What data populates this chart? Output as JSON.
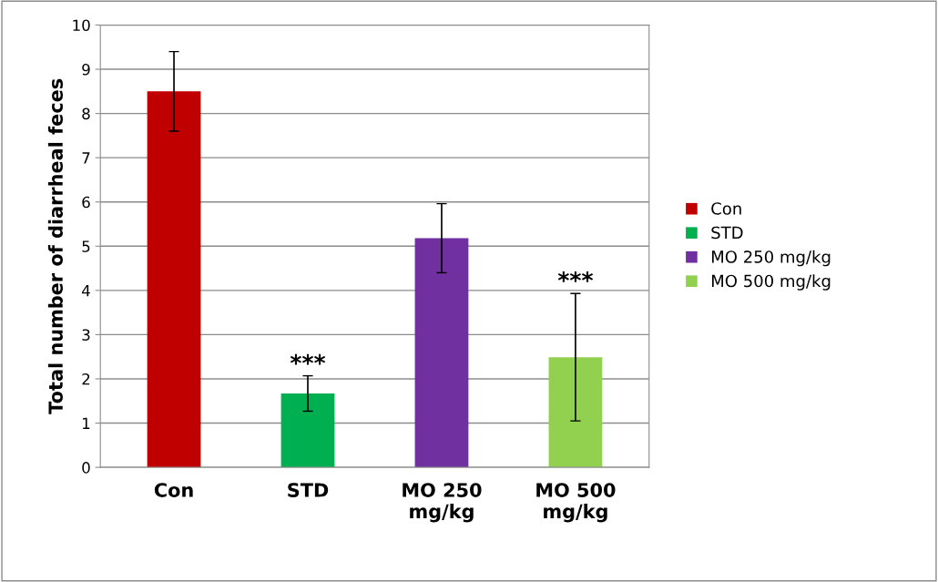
{
  "chart_data": {
    "type": "bar",
    "ylabel": "Total number of diarrheal feces",
    "categories": [
      "Con",
      "STD",
      "MO 250\nmg/kg",
      "MO 500\nmg/kg"
    ],
    "series": [
      {
        "name": "Con",
        "color": "#c00000",
        "values": [
          8.5,
          null,
          null,
          null
        ],
        "errors": [
          0.9,
          null,
          null,
          null
        ]
      },
      {
        "name": "STD",
        "color": "#00b050",
        "values": [
          null,
          1.67,
          null,
          null
        ],
        "errors": [
          null,
          0.4,
          null,
          null
        ]
      },
      {
        "name": "MO 250 mg/kg",
        "color": "#7030a0",
        "values": [
          null,
          null,
          5.18,
          null
        ],
        "errors": [
          null,
          null,
          0.78,
          null
        ]
      },
      {
        "name": "MO 500 mg/kg",
        "color": "#92d050",
        "values": [
          null,
          null,
          null,
          2.49
        ],
        "errors": [
          null,
          null,
          null,
          1.44
        ]
      }
    ],
    "ylim": [
      0,
      10
    ],
    "yticks": [
      0,
      1,
      2,
      3,
      4,
      5,
      6,
      7,
      8,
      9,
      10
    ],
    "grid": "y",
    "legend": "right",
    "annotations": [
      {
        "text": "***",
        "x": "STD",
        "y": 2.07
      },
      {
        "text": "***",
        "x": "MO 500\nmg/kg",
        "y": 3.94
      }
    ]
  }
}
